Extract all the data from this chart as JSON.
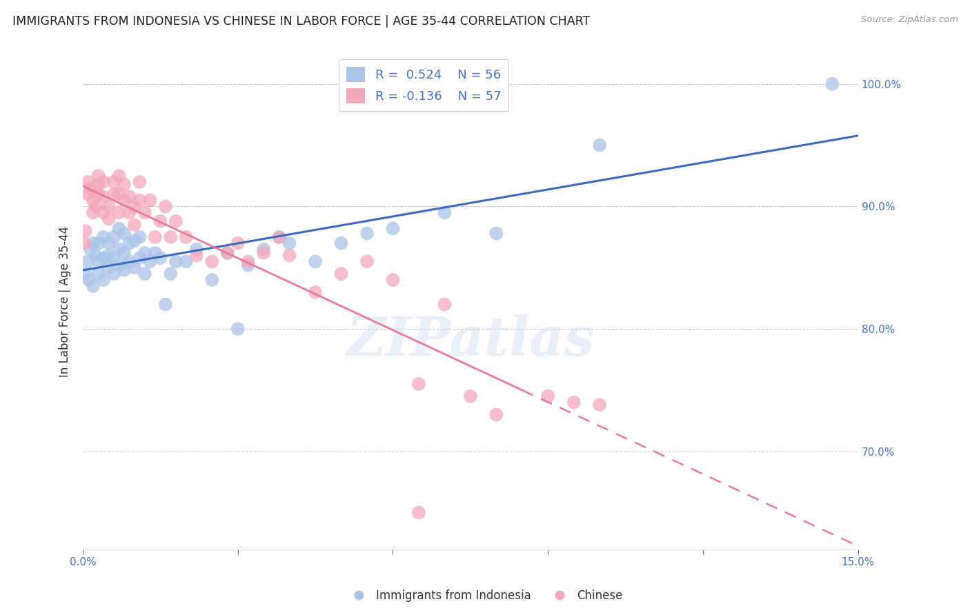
{
  "title": "IMMIGRANTS FROM INDONESIA VS CHINESE IN LABOR FORCE | AGE 35-44 CORRELATION CHART",
  "source": "Source: ZipAtlas.com",
  "ylabel": "In Labor Force | Age 35-44",
  "legend_entries": [
    {
      "label": "Immigrants from Indonesia",
      "R": 0.524,
      "N": 56,
      "color": "#aac4e8"
    },
    {
      "label": "Chinese",
      "R": -0.136,
      "N": 57,
      "color": "#f4a7b9"
    }
  ],
  "right_ytick_values": [
    1.0,
    0.9,
    0.8,
    0.7
  ],
  "xlim": [
    0.0,
    0.15
  ],
  "ylim": [
    0.62,
    1.025
  ],
  "background_color": "#ffffff",
  "grid_color": "#cccccc",
  "axis_color": "#4472c4",
  "title_color": "#222222",
  "source_color": "#999999",
  "scatter_blue_color": "#aac4e8",
  "scatter_pink_color": "#f4a7b9",
  "trendline_blue_color": "#3a6abf",
  "trendline_pink_color": "#e8799a",
  "watermark_text": "ZIPatlas",
  "indonesia_x": [
    0.0005,
    0.001,
    0.0012,
    0.0015,
    0.002,
    0.002,
    0.0025,
    0.003,
    0.003,
    0.003,
    0.004,
    0.004,
    0.004,
    0.005,
    0.005,
    0.005,
    0.006,
    0.006,
    0.006,
    0.007,
    0.007,
    0.007,
    0.008,
    0.008,
    0.008,
    0.009,
    0.009,
    0.01,
    0.01,
    0.011,
    0.011,
    0.012,
    0.012,
    0.013,
    0.014,
    0.015,
    0.016,
    0.017,
    0.018,
    0.02,
    0.022,
    0.025,
    0.028,
    0.03,
    0.032,
    0.035,
    0.038,
    0.04,
    0.045,
    0.05,
    0.055,
    0.06,
    0.07,
    0.08,
    0.1,
    0.145
  ],
  "indonesia_y": [
    0.845,
    0.855,
    0.84,
    0.865,
    0.835,
    0.87,
    0.86,
    0.855,
    0.845,
    0.87,
    0.84,
    0.858,
    0.875,
    0.85,
    0.86,
    0.87,
    0.845,
    0.858,
    0.875,
    0.852,
    0.865,
    0.882,
    0.848,
    0.862,
    0.878,
    0.855,
    0.87,
    0.85,
    0.872,
    0.858,
    0.875,
    0.845,
    0.862,
    0.855,
    0.862,
    0.858,
    0.82,
    0.845,
    0.855,
    0.855,
    0.865,
    0.84,
    0.862,
    0.8,
    0.852,
    0.865,
    0.875,
    0.87,
    0.855,
    0.87,
    0.878,
    0.882,
    0.895,
    0.878,
    0.95,
    1.0
  ],
  "chinese_x": [
    0.0003,
    0.0005,
    0.001,
    0.001,
    0.0015,
    0.002,
    0.002,
    0.0025,
    0.003,
    0.003,
    0.003,
    0.004,
    0.004,
    0.004,
    0.005,
    0.005,
    0.006,
    0.006,
    0.007,
    0.007,
    0.007,
    0.008,
    0.008,
    0.009,
    0.009,
    0.01,
    0.01,
    0.011,
    0.011,
    0.012,
    0.013,
    0.014,
    0.015,
    0.016,
    0.017,
    0.018,
    0.02,
    0.022,
    0.025,
    0.028,
    0.03,
    0.032,
    0.035,
    0.038,
    0.04,
    0.045,
    0.05,
    0.055,
    0.06,
    0.065,
    0.07,
    0.075,
    0.08,
    0.09,
    0.095,
    0.1,
    0.065
  ],
  "chinese_y": [
    0.87,
    0.88,
    0.92,
    0.91,
    0.915,
    0.895,
    0.905,
    0.9,
    0.918,
    0.91,
    0.925,
    0.895,
    0.908,
    0.92,
    0.89,
    0.9,
    0.91,
    0.92,
    0.895,
    0.91,
    0.925,
    0.905,
    0.918,
    0.895,
    0.908,
    0.885,
    0.9,
    0.905,
    0.92,
    0.895,
    0.905,
    0.875,
    0.888,
    0.9,
    0.875,
    0.888,
    0.875,
    0.86,
    0.855,
    0.862,
    0.87,
    0.855,
    0.862,
    0.875,
    0.86,
    0.83,
    0.845,
    0.855,
    0.84,
    0.755,
    0.82,
    0.745,
    0.73,
    0.745,
    0.74,
    0.738,
    0.65
  ],
  "trendline_solid_end": 0.085,
  "trendline_dash_start": 0.085
}
